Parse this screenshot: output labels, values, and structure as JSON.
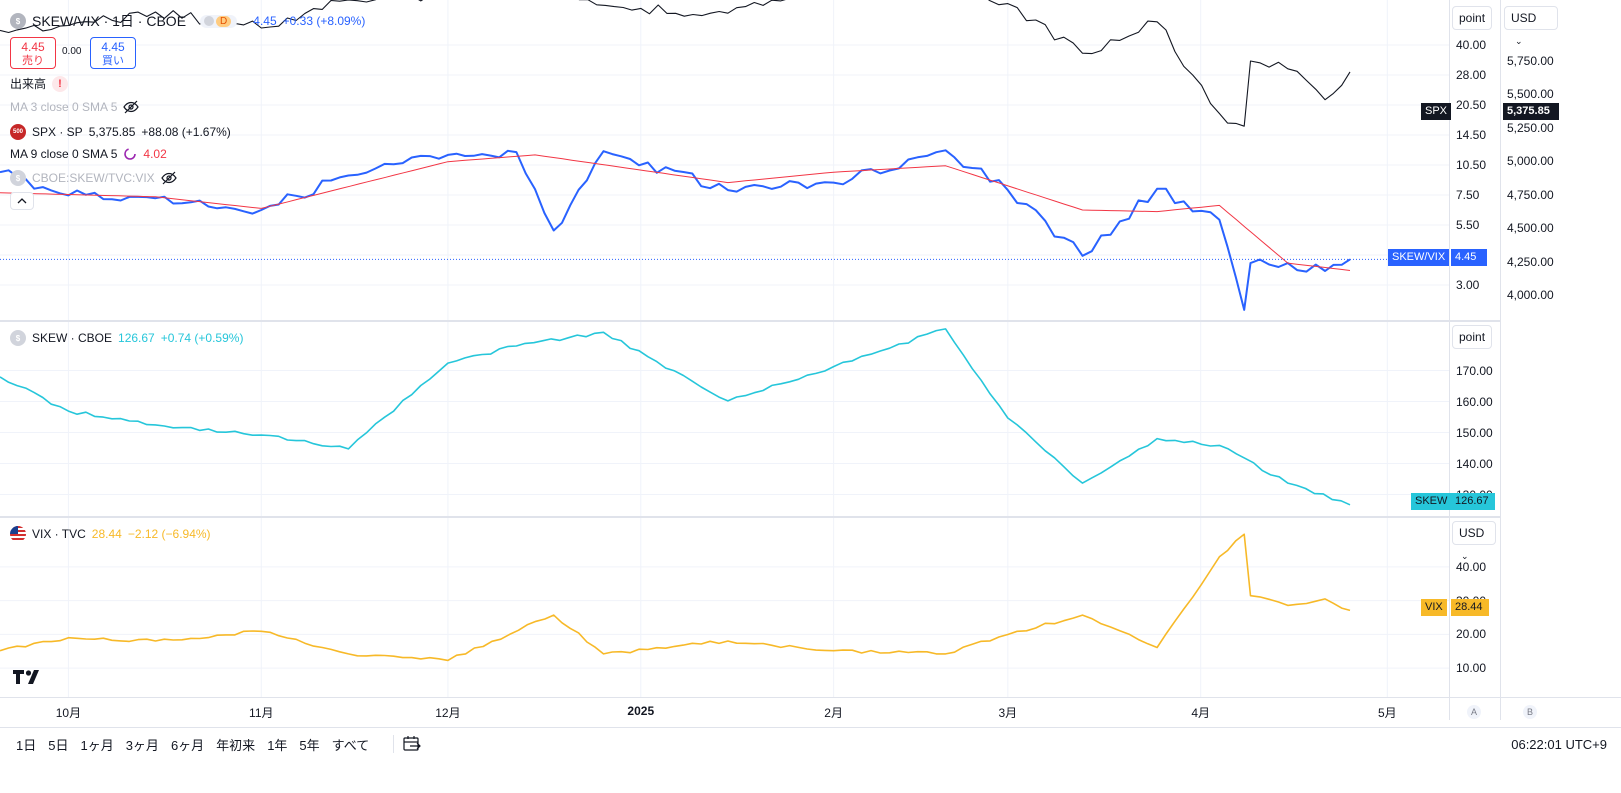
{
  "header": {
    "title": "SKEW/VIX · 1日 · CBOE",
    "interval_badge": "D",
    "last": "4.45",
    "change": "+0.33 (+8.09%)",
    "sell_price": "4.45",
    "sell_label": "売り",
    "spread": "0.00",
    "buy_price": "4.45",
    "buy_label": "買い"
  },
  "legends": {
    "volume": "出来高",
    "ma3": "MA 3 close 0 SMA 5",
    "spx_symbol": "SPX · SP",
    "spx_badge": "500",
    "spx_last": "5,375.85",
    "spx_change": "+88.08 (+1.67%)",
    "ma9": "MA 9 close 0 SMA 5",
    "ma9_value": "4.02",
    "ratio_symbol": "CBOE:SKEW/TVC:VIX",
    "skew_symbol": "SKEW · CBOE",
    "skew_last": "126.67",
    "skew_change": "+0.74 (+0.59%)",
    "vix_symbol": "VIX · TVC",
    "vix_last": "28.44",
    "vix_change": "−2.12 (−6.94%)"
  },
  "right_axes": {
    "mode_label": "point",
    "currency_label": "USD",
    "mode_label_2": "point",
    "currency_label_3": "USD",
    "ratio_ticks": [
      "40.00",
      "28.00",
      "20.50",
      "14.50",
      "10.50",
      "7.50",
      "5.50",
      "4.00",
      "3.00"
    ],
    "spx_ticks": [
      "5,750.00",
      "5,500.00",
      "5,250.00",
      "5,000.00",
      "4,750.00",
      "4,500.00",
      "4,250.00",
      "4,000.00"
    ],
    "skew_ticks": [
      "170.00",
      "160.00",
      "150.00",
      "140.00",
      "130.00"
    ],
    "vix_ticks": [
      "40.00",
      "30.00",
      "20.00",
      "10.00"
    ],
    "tags": {
      "spx_name": "SPX",
      "spx_value": "5,375.85",
      "ratio_name": "SKEW/VIX",
      "ratio_value": "4.45",
      "skew_name": "SKEW",
      "skew_value": "126.67",
      "vix_name": "VIX",
      "vix_value": "28.44"
    },
    "pane_a": "A",
    "pane_b": "B"
  },
  "time_axis": [
    "10月",
    "11月",
    "12月",
    "2025",
    "2月",
    "3月",
    "4月",
    "5月"
  ],
  "bottom_bar": {
    "ranges": [
      "1日",
      "5日",
      "1ヶ月",
      "3ヶ月",
      "6ヶ月",
      "年初来",
      "1年",
      "5年",
      "すべて"
    ],
    "clock": "06:22:01 UTC+9"
  },
  "colors": {
    "ratio": "#2962ff",
    "ma": "#f23645",
    "spx": "#131722",
    "skew": "#26c6da",
    "vix": "#f7b928"
  },
  "chart_data": [
    {
      "type": "line",
      "name": "SPX",
      "yscale": "log",
      "ylim": [
        3800,
        5950
      ],
      "x": [
        "2024-09-20",
        "2024-10-01",
        "2024-10-15",
        "2024-11-01",
        "2024-11-15",
        "2024-12-01",
        "2024-12-15",
        "2025-01-01",
        "2025-01-15",
        "2025-02-01",
        "2025-02-19",
        "2025-03-01",
        "2025-03-13",
        "2025-03-25",
        "2025-04-04",
        "2025-04-08",
        "2025-04-09",
        "2025-04-15",
        "2025-04-21",
        "2025-04-25"
      ],
      "values": [
        5700,
        5740,
        5850,
        5720,
        5950,
        5990,
        6050,
        5880,
        5840,
        6040,
        6140,
        5920,
        5520,
        5770,
        5070,
        4980,
        5460,
        5400,
        5170,
        5376
      ]
    },
    {
      "type": "line",
      "name": "SKEW/VIX",
      "yscale": "log",
      "ylim": [
        2.6,
        48
      ],
      "x": [
        "2024-09-20",
        "2024-10-01",
        "2024-10-15",
        "2024-11-01",
        "2024-11-15",
        "2024-12-01",
        "2024-12-12",
        "2024-12-18",
        "2024-12-26",
        "2025-01-15",
        "2025-02-01",
        "2025-02-19",
        "2025-03-01",
        "2025-03-13",
        "2025-03-25",
        "2025-04-04",
        "2025-04-08",
        "2025-04-09",
        "2025-04-15",
        "2025-04-21",
        "2025-04-25"
      ],
      "values": [
        9.9,
        8.0,
        7.8,
        7.0,
        9.6,
        11.6,
        11.9,
        5.8,
        12.0,
        8.4,
        9.0,
        12.1,
        8.4,
        4.6,
        8.5,
        6.4,
        2.8,
        4.3,
        4.3,
        4.0,
        4.45
      ]
    },
    {
      "type": "line",
      "name": "MA 9",
      "yscale": "log",
      "ylim": [
        2.6,
        48
      ],
      "x": [
        "2024-09-20",
        "2024-10-15",
        "2024-11-01",
        "2024-12-01",
        "2024-12-15",
        "2025-01-15",
        "2025-02-01",
        "2025-02-19",
        "2025-03-13",
        "2025-03-25",
        "2025-04-04",
        "2025-04-15",
        "2025-04-25"
      ],
      "values": [
        8.2,
        7.9,
        7.1,
        10.9,
        11.6,
        9.0,
        9.9,
        10.5,
        7.0,
        6.9,
        7.3,
        4.3,
        4.02
      ]
    },
    {
      "type": "line",
      "name": "SKEW",
      "ylim": [
        124,
        180
      ],
      "x": [
        "2024-09-20",
        "2024-10-01",
        "2024-10-15",
        "2024-11-01",
        "2024-11-15",
        "2024-12-01",
        "2024-12-12",
        "2024-12-26",
        "2025-01-15",
        "2025-02-01",
        "2025-02-19",
        "2025-03-01",
        "2025-03-13",
        "2025-03-25",
        "2025-04-04",
        "2025-04-15",
        "2025-04-25"
      ],
      "values": [
        164,
        154,
        150,
        147,
        143,
        168,
        173,
        177,
        157,
        167,
        178,
        152,
        133,
        146,
        144,
        133,
        126.67
      ]
    },
    {
      "type": "line",
      "name": "VIX",
      "ylim": [
        2,
        57
      ],
      "x": [
        "2024-09-20",
        "2024-10-01",
        "2024-10-15",
        "2024-11-01",
        "2024-11-15",
        "2024-12-01",
        "2024-12-18",
        "2024-12-26",
        "2025-01-15",
        "2025-02-01",
        "2025-02-19",
        "2025-03-01",
        "2025-03-13",
        "2025-03-25",
        "2025-04-04",
        "2025-04-08",
        "2025-04-09",
        "2025-04-15",
        "2025-04-21",
        "2025-04-25"
      ],
      "values": [
        16,
        20,
        19,
        22,
        15,
        13,
        27,
        15,
        19,
        16,
        15,
        21,
        27,
        17,
        45,
        52,
        33,
        30,
        32,
        28.44
      ]
    }
  ]
}
